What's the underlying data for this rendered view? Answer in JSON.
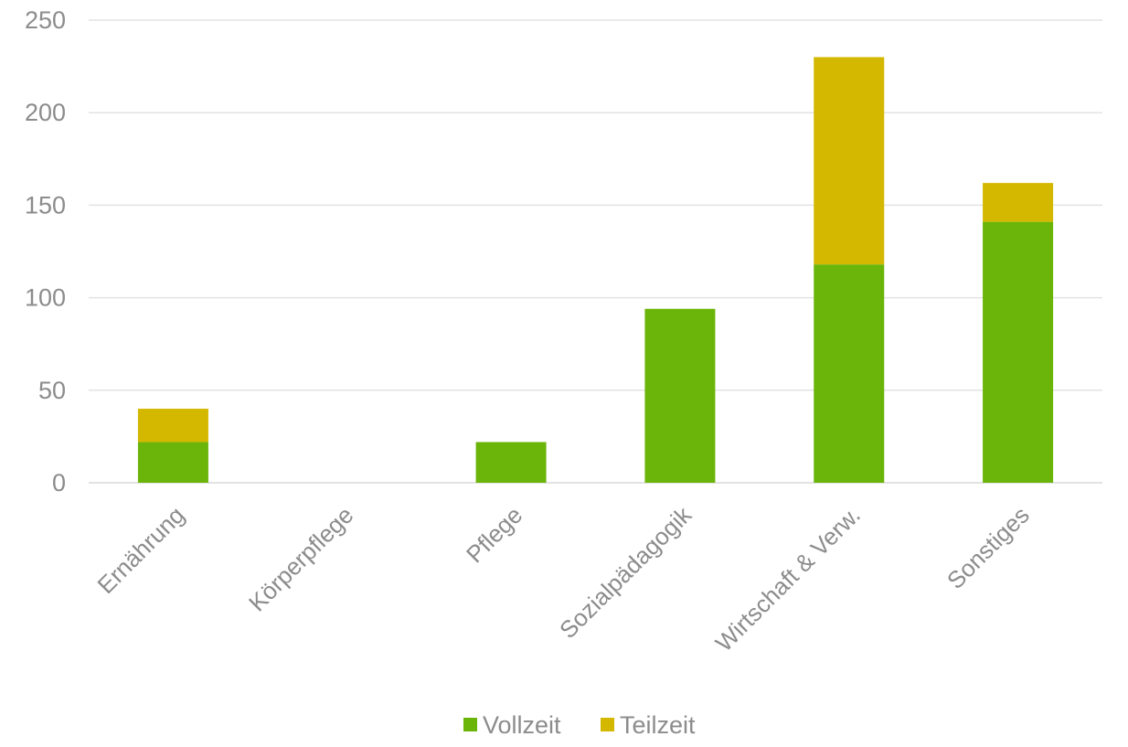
{
  "chart_data": {
    "type": "bar",
    "stacked": true,
    "categories": [
      "Ernährung",
      "Körperpflege",
      "Pflege",
      "Sozialpädagogik",
      "Wirtschaft & Verw.",
      "Sonstiges"
    ],
    "series": [
      {
        "name": "Vollzeit",
        "color": "#6bb50a",
        "values": [
          22,
          0,
          22,
          94,
          118,
          141
        ]
      },
      {
        "name": "Teilzeit",
        "color": "#d4b800",
        "values": [
          18,
          0,
          0,
          0,
          112,
          21
        ]
      }
    ],
    "ylim": [
      0,
      250
    ],
    "yticks": [
      0,
      50,
      100,
      150,
      200,
      250
    ],
    "title": "",
    "xlabel": "",
    "ylabel": "",
    "grid": true,
    "legend": "bottom-center"
  }
}
